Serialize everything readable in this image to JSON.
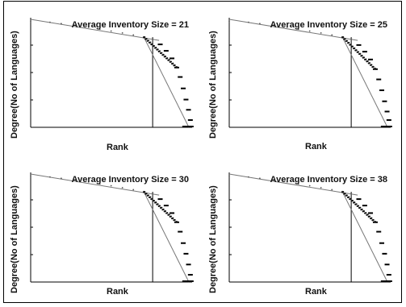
{
  "chart_data": [
    {
      "type": "scatter",
      "title": "Average Inventory Size = 21",
      "xlabel": "Rank",
      "ylabel": "Degree(No of Languages)",
      "grid": false,
      "log_x": true,
      "log_y": true,
      "x": [
        1,
        2,
        3,
        5,
        8,
        12,
        18,
        27,
        40,
        58,
        80,
        105,
        130,
        160,
        190,
        215,
        240,
        265,
        290,
        310
      ],
      "y": [
        100,
        96,
        91,
        85,
        79,
        73,
        68,
        63,
        58,
        54,
        50,
        40,
        31,
        23,
        16,
        11,
        7,
        4.5,
        3,
        2
      ],
      "fit_lines": [
        "upper",
        "lower"
      ]
    },
    {
      "type": "scatter",
      "title": "Average Inventory Size = 25",
      "xlabel": "Rank",
      "ylabel": "Degree(No of Languages)",
      "grid": false,
      "log_x": true,
      "log_y": true,
      "x": [
        1,
        2,
        3,
        5,
        8,
        12,
        18,
        27,
        40,
        58,
        80,
        105,
        130,
        160,
        190,
        215,
        240,
        265,
        290,
        310
      ],
      "y": [
        100,
        96,
        91,
        85,
        79,
        73,
        68,
        63,
        58,
        54,
        50,
        39,
        30,
        22,
        15,
        10,
        6.5,
        4.2,
        2.8,
        2
      ],
      "fit_lines": [
        "upper",
        "lower"
      ]
    },
    {
      "type": "scatter",
      "title": "Average Inventory Size = 30",
      "xlabel": "Rank",
      "ylabel": "Degree(No of Languages)",
      "grid": false,
      "log_x": true,
      "log_y": true,
      "x": [
        1,
        2,
        3,
        5,
        8,
        12,
        18,
        27,
        40,
        58,
        80,
        105,
        130,
        160,
        190,
        215,
        240,
        265,
        290,
        310
      ],
      "y": [
        100,
        96,
        91,
        85,
        79,
        73,
        68,
        63,
        58,
        54,
        50,
        40,
        31,
        23,
        16,
        11,
        7,
        4.6,
        3,
        2
      ],
      "fit_lines": [
        "upper",
        "lower"
      ]
    },
    {
      "type": "scatter",
      "title": "Average Inventory Size = 38",
      "xlabel": "Rank",
      "ylabel": "Degree(No of Languages)",
      "grid": false,
      "log_x": true,
      "log_y": true,
      "x": [
        1,
        2,
        3,
        5,
        8,
        12,
        18,
        27,
        40,
        58,
        80,
        105,
        130,
        160,
        190,
        215,
        240,
        265,
        290,
        310
      ],
      "y": [
        100,
        96,
        91,
        85,
        79,
        73,
        68,
        63,
        58,
        54,
        50,
        40,
        31,
        23,
        16,
        11,
        7,
        4.6,
        3,
        2
      ],
      "fit_lines": [
        "upper",
        "lower"
      ]
    }
  ]
}
